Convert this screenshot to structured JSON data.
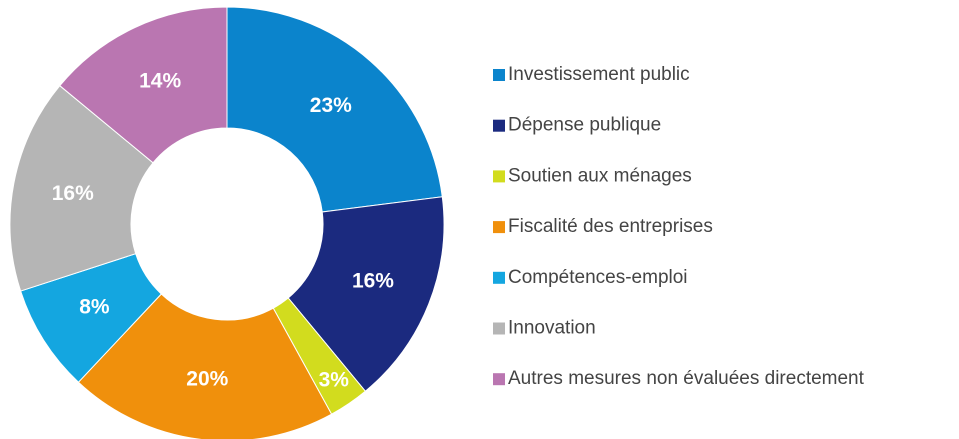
{
  "chart_data": {
    "type": "donut",
    "categories": [
      "Investissement public",
      "Dépense publique",
      "Soutien aux ménages",
      "Fiscalité des entreprises",
      "Compétences-emploi",
      "Innovation",
      "Autres mesures non évaluées directement"
    ],
    "values": [
      23,
      16,
      3,
      20,
      8,
      16,
      14
    ],
    "value_labels": [
      "23%",
      "16%",
      "3%",
      "20%",
      "8%",
      "16%",
      "14%"
    ],
    "colors": [
      "#0b84cc",
      "#1b2a7f",
      "#d2dc1e",
      "#f0900c",
      "#14a6e0",
      "#b5b5b5",
      "#ba76b1"
    ],
    "legend": "right"
  }
}
